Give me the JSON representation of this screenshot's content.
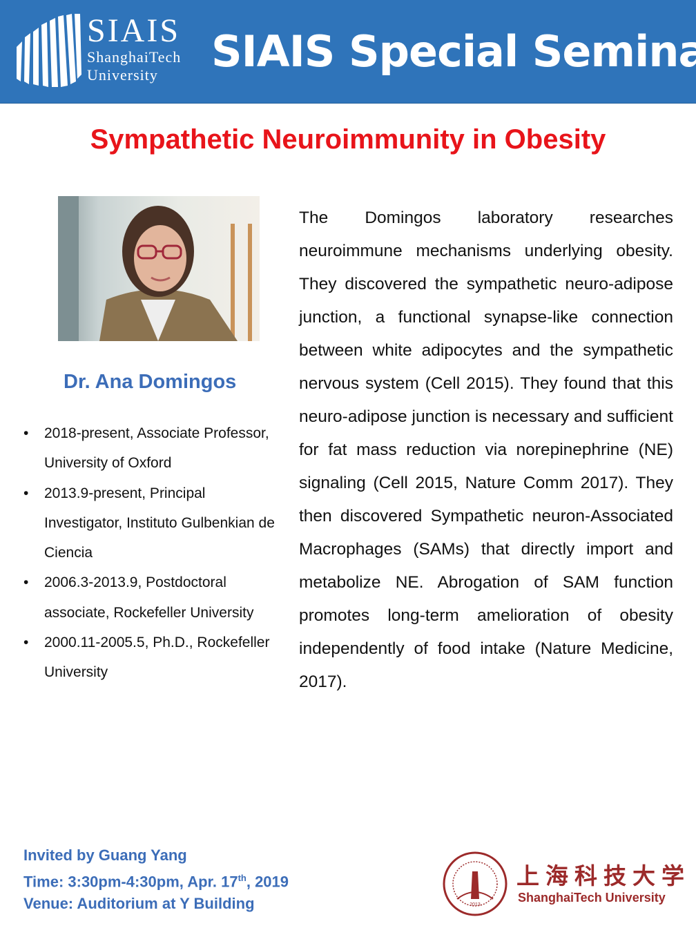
{
  "header": {
    "logo_name": "SIAIS",
    "logo_sub1": "ShanghaiTech",
    "logo_sub2": "University",
    "title": "SIAIS Special Seminar",
    "color": "#2f74ba"
  },
  "talk_title": "Sympathetic Neuroimmunity in Obesity",
  "speaker": {
    "name": "Dr. Ana Domingos",
    "bio": [
      "2018-present, Associate Professor, University of Oxford",
      "2013.9-present, Principal Investigator, Instituto Gulbenkian de Ciencia",
      "2006.3-2013.9, Postdoctoral associate, Rockefeller University",
      "2000.11-2005.5, Ph.D., Rockefeller University"
    ]
  },
  "abstract": "The Domingos laboratory researches neuroimmune mechanisms underlying obesity. They discovered the sympathetic neuro-adipose junction, a functional synapse-like connection between white adipocytes and the sympathetic nervous system (Cell 2015). They found that this neuro-adipose junction is necessary and sufficient for fat mass reduction via norepinephrine (NE) signaling (Cell 2015, Nature Comm 2017). They then discovered Sympathetic neuron-Associated Macrophages (SAMs) that directly import and metabolize NE. Abrogation of SAM function promotes long-term amelioration of obesity independently of food intake (Nature Medicine, 2017).",
  "footer": {
    "invited": "Invited by Guang Yang",
    "time_prefix": "Time: 3:30pm-4:30pm,  Apr. 17",
    "time_sup": "th",
    "time_suffix": ", 2019",
    "venue": "Venue: Auditorium at Y Building"
  },
  "university_logo": {
    "cn": "上海科技大学",
    "en": "ShanghaiTech University",
    "seal_text": "SHANGHAITECH UNIVERSITY",
    "seal_year": "2013"
  }
}
